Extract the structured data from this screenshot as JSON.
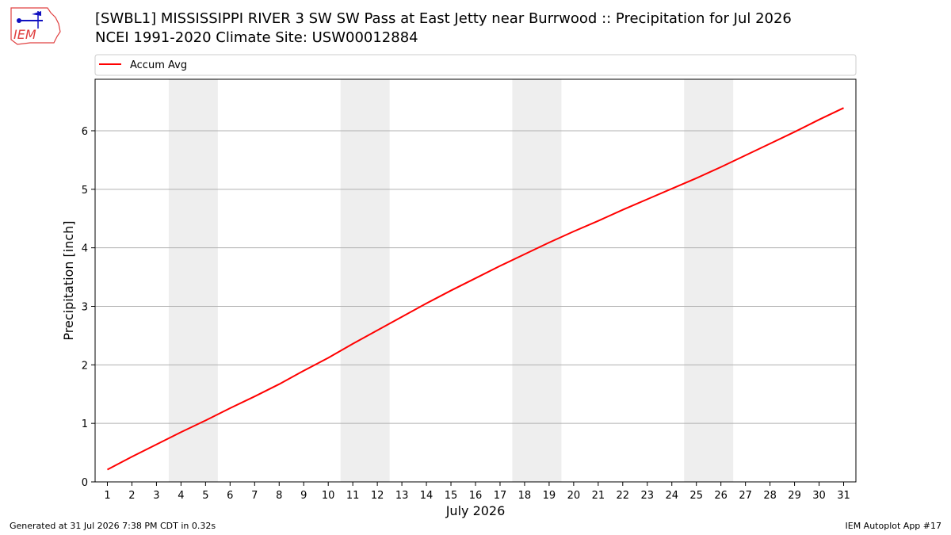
{
  "header": {
    "title_line1": "[SWBL1] MISSISSIPPI RIVER 3 SW SW Pass at East Jetty near Burrwood :: Precipitation for Jul 2026",
    "title_line2": "NCEI 1991-2020 Climate Site: USW00012884",
    "logo_text": "IEM"
  },
  "footer": {
    "generated": "Generated at 31 Jul 2026 7:38 PM CDT in 0.32s",
    "app": "IEM Autoplot App #17"
  },
  "colors": {
    "series": "#ff0000",
    "weekend_band": "#eeeeee",
    "grid": "#b0b0b0",
    "logo": "#e04040",
    "logo_icon": "#1010c0"
  },
  "chart_data": {
    "type": "line",
    "xlabel": "July 2026",
    "ylabel": "Precipitation [inch]",
    "xlim": [
      0.5,
      31.5
    ],
    "ylim": [
      0,
      6.88
    ],
    "yticks": [
      0,
      1,
      2,
      3,
      4,
      5,
      6
    ],
    "ygrid": true,
    "legend_position": "top",
    "weekend_bands": [
      [
        3.5,
        5.5
      ],
      [
        10.5,
        12.5
      ],
      [
        17.5,
        19.5
      ],
      [
        24.5,
        26.5
      ]
    ],
    "x": [
      1,
      2,
      3,
      4,
      5,
      6,
      7,
      8,
      9,
      10,
      11,
      12,
      13,
      14,
      15,
      16,
      17,
      18,
      19,
      20,
      21,
      22,
      23,
      24,
      25,
      26,
      27,
      28,
      29,
      30,
      31
    ],
    "series": [
      {
        "name": "Accum Avg",
        "values": [
          0.21,
          0.43,
          0.64,
          0.85,
          1.05,
          1.26,
          1.46,
          1.67,
          1.9,
          2.12,
          2.36,
          2.59,
          2.82,
          3.05,
          3.27,
          3.48,
          3.69,
          3.89,
          4.09,
          4.28,
          4.46,
          4.65,
          4.83,
          5.01,
          5.19,
          5.38,
          5.58,
          5.78,
          5.98,
          6.19,
          6.39
        ]
      }
    ]
  }
}
